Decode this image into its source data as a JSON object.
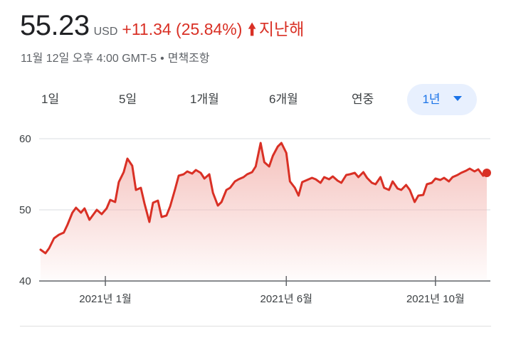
{
  "quote": {
    "price": "55.23",
    "currency": "USD",
    "change": "+11.34 (25.84%)",
    "period": "지난해",
    "change_icon": "arrow-up-icon",
    "timestamp": "11월 12일 오후 4:00 GMT-5",
    "separator": "•",
    "disclaimer": "면책조항"
  },
  "tabs": [
    {
      "label": "1일"
    },
    {
      "label": "5일"
    },
    {
      "label": "1개월"
    },
    {
      "label": "6개월"
    },
    {
      "label": "연중"
    },
    {
      "label": "1년",
      "selected": true,
      "dropdown_icon": "chevron-down-icon"
    }
  ],
  "colors": {
    "line": "#d93025",
    "area_top": "#f3b6b1",
    "grid": "#dadce0",
    "axis": "#5f6368",
    "tab_active_bg": "#e8f0fe",
    "tab_active_text": "#1a73e8"
  },
  "chart_data": {
    "type": "area",
    "ylim": [
      40,
      60
    ],
    "yticks": [
      40,
      50,
      60
    ],
    "xtick_labels": [
      "2021년 1월",
      "2021년 6월",
      "2021년 10월"
    ],
    "xtick_dates": [
      "2021-01-04",
      "2021-06-01",
      "2021-10-01"
    ],
    "x_range": [
      "2020-11-12",
      "2021-11-12"
    ],
    "grid": true,
    "series": [
      {
        "x": [
          "2020-11-12",
          "2020-11-16",
          "2020-11-19",
          "2020-11-23",
          "2020-11-27",
          "2020-12-01",
          "2020-12-04",
          "2020-12-08",
          "2020-12-11",
          "2020-12-15",
          "2020-12-18",
          "2020-12-22",
          "2020-12-28",
          "2021-01-01",
          "2021-01-05",
          "2021-01-08",
          "2021-01-12",
          "2021-01-15",
          "2021-01-19",
          "2021-01-22",
          "2021-01-26",
          "2021-01-29",
          "2021-02-02",
          "2021-02-05",
          "2021-02-09",
          "2021-02-12",
          "2021-02-16",
          "2021-02-19",
          "2021-02-23",
          "2021-02-26",
          "2021-03-02",
          "2021-03-05",
          "2021-03-09",
          "2021-03-12",
          "2021-03-16",
          "2021-03-19",
          "2021-03-23",
          "2021-03-26",
          "2021-03-30",
          "2021-04-02",
          "2021-04-06",
          "2021-04-09",
          "2021-04-13",
          "2021-04-16",
          "2021-04-20",
          "2021-04-23",
          "2021-04-27",
          "2021-04-30",
          "2021-05-04",
          "2021-05-07",
          "2021-05-11",
          "2021-05-14",
          "2021-05-18",
          "2021-05-21",
          "2021-05-25",
          "2021-05-28",
          "2021-06-01",
          "2021-06-04",
          "2021-06-08",
          "2021-06-11",
          "2021-06-14",
          "2021-06-18",
          "2021-06-22",
          "2021-06-25",
          "2021-06-29",
          "2021-07-02",
          "2021-07-06",
          "2021-07-09",
          "2021-07-13",
          "2021-07-16",
          "2021-07-20",
          "2021-07-23",
          "2021-07-27",
          "2021-07-30",
          "2021-08-03",
          "2021-08-06",
          "2021-08-10",
          "2021-08-13",
          "2021-08-17",
          "2021-08-20",
          "2021-08-24",
          "2021-08-27",
          "2021-08-31",
          "2021-09-03",
          "2021-09-07",
          "2021-09-10",
          "2021-09-14",
          "2021-09-17",
          "2021-09-21",
          "2021-09-24",
          "2021-09-28",
          "2021-10-01",
          "2021-10-05",
          "2021-10-08",
          "2021-10-12",
          "2021-10-15",
          "2021-10-19",
          "2021-10-22",
          "2021-10-26",
          "2021-10-29",
          "2021-11-02",
          "2021-11-05",
          "2021-11-09",
          "2021-11-12"
        ],
        "y": [
          44.4,
          43.9,
          44.6,
          46.0,
          46.5,
          46.8,
          47.9,
          49.6,
          50.3,
          49.6,
          50.2,
          48.6,
          50.0,
          49.4,
          50.2,
          51.4,
          51.1,
          53.9,
          55.3,
          57.2,
          56.2,
          52.8,
          53.1,
          50.9,
          48.3,
          51.0,
          51.3,
          49.0,
          49.2,
          50.5,
          52.9,
          54.8,
          55.0,
          55.4,
          55.1,
          55.6,
          55.2,
          54.4,
          55.0,
          52.4,
          50.6,
          51.1,
          52.8,
          53.1,
          54.0,
          54.3,
          54.6,
          55.0,
          55.3,
          56.1,
          59.4,
          56.7,
          56.1,
          57.6,
          58.9,
          59.4,
          58.0,
          54.0,
          53.1,
          52.0,
          53.9,
          54.2,
          54.5,
          54.3,
          53.8,
          54.6,
          54.3,
          54.7,
          54.1,
          53.8,
          54.9,
          55.0,
          55.2,
          54.6,
          55.3,
          54.5,
          53.8,
          53.6,
          54.6,
          53.1,
          52.8,
          54.0,
          53.0,
          52.8,
          53.5,
          52.8,
          51.1,
          52.0,
          52.1,
          53.6,
          53.8,
          54.4,
          54.2,
          54.5,
          54.0,
          54.6,
          54.9,
          55.2,
          55.5,
          55.8,
          55.4,
          55.7,
          54.8,
          55.2
        ]
      }
    ]
  }
}
